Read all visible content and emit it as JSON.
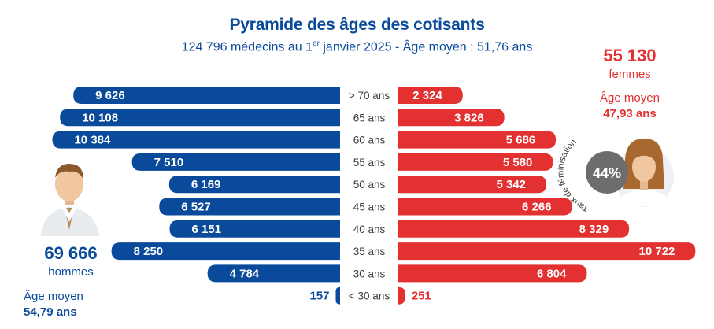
{
  "header": {
    "title": "Pyramide des âges des cotisants",
    "subtitle_pre": "124 796 médecins au 1",
    "subtitle_sup": "er",
    "subtitle_post": " janvier 2025 - Âge moyen : 51,76 ans"
  },
  "women": {
    "count": "55 130",
    "label": "femmes",
    "avg_age_label": "Âge moyen",
    "avg_age": "47,93 ans",
    "feminisation_rate": "44%",
    "feminisation_label": "Taux de féminisation"
  },
  "men": {
    "count": "69 666",
    "label": "hommes",
    "avg_age_label": "Âge moyen",
    "avg_age": "54,79 ans"
  },
  "colors": {
    "men": "#0a4a9b",
    "women": "#e33030",
    "axis_text": "#3c3c3c",
    "badge": "#6d6d6d"
  },
  "chart_data": {
    "type": "bar",
    "orientation": "horizontal-pyramid",
    "categories": [
      "> 70 ans",
      "65 ans",
      "60 ans",
      "55 ans",
      "50 ans",
      "45 ans",
      "40 ans",
      "35 ans",
      "30 ans",
      "< 30 ans"
    ],
    "series": [
      {
        "name": "hommes",
        "values": [
          9626,
          10108,
          10384,
          7510,
          6169,
          6527,
          6151,
          8250,
          4784,
          157
        ],
        "labels": [
          "9 626",
          "10 108",
          "10 384",
          "7 510",
          "6 169",
          "6 527",
          "6 151",
          "8 250",
          "4 784",
          "157"
        ]
      },
      {
        "name": "femmes",
        "values": [
          2324,
          3826,
          5686,
          5580,
          5342,
          6266,
          8329,
          10722,
          6804,
          251
        ],
        "labels": [
          "2 324",
          "3 826",
          "5 686",
          "5 580",
          "5 342",
          "6 266",
          "8 329",
          "10 722",
          "6 804",
          "251"
        ]
      }
    ]
  }
}
